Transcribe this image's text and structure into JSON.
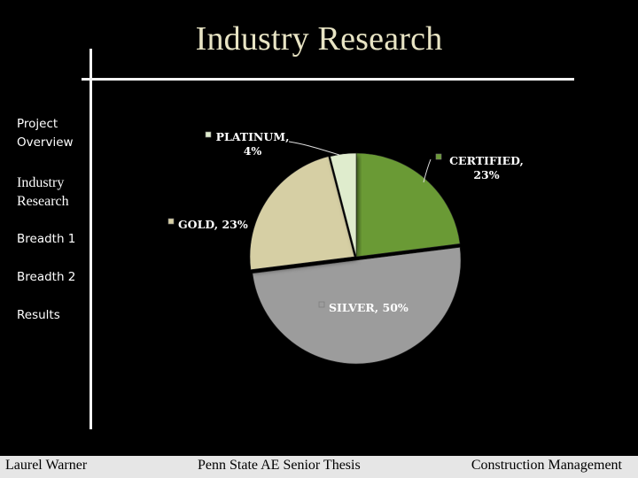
{
  "slide": {
    "title": "Industry Research"
  },
  "nav": {
    "items": [
      {
        "label": "Project Overview",
        "line1": "Project",
        "line2": "Overview"
      },
      {
        "label": "Industry Research",
        "line1": "Industry",
        "line2": "Research"
      },
      {
        "label": "Breadth 1"
      },
      {
        "label": "Breadth 2"
      },
      {
        "label": "Results"
      }
    ]
  },
  "chart_data": {
    "type": "pie",
    "title": "",
    "slices": [
      {
        "name": "CERTIFIED",
        "value": 23,
        "label_line1": "CERTIFIED,",
        "label_line2": "23%",
        "color": "#6b9a36"
      },
      {
        "name": "SILVER",
        "value": 50,
        "label_line1": "SILVER, 50%",
        "label_line2": "",
        "color": "#9c9c9c"
      },
      {
        "name": "GOLD",
        "value": 23,
        "label_line1": "GOLD, 23%",
        "label_line2": "",
        "color": "#d6cfa4"
      },
      {
        "name": "PLATINUM",
        "value": 4,
        "label_line1": "PLATINUM,",
        "label_line2": "4%",
        "color": "#dfeccd"
      }
    ]
  },
  "footer": {
    "left": "Laurel Warner",
    "center": "Penn State AE Senior Thesis",
    "right": "Construction Management"
  },
  "colors": {
    "background": "#000000",
    "title": "#e8e4c4",
    "rule": "#f4f4f4",
    "footer_bg": "#e6e6e6"
  }
}
